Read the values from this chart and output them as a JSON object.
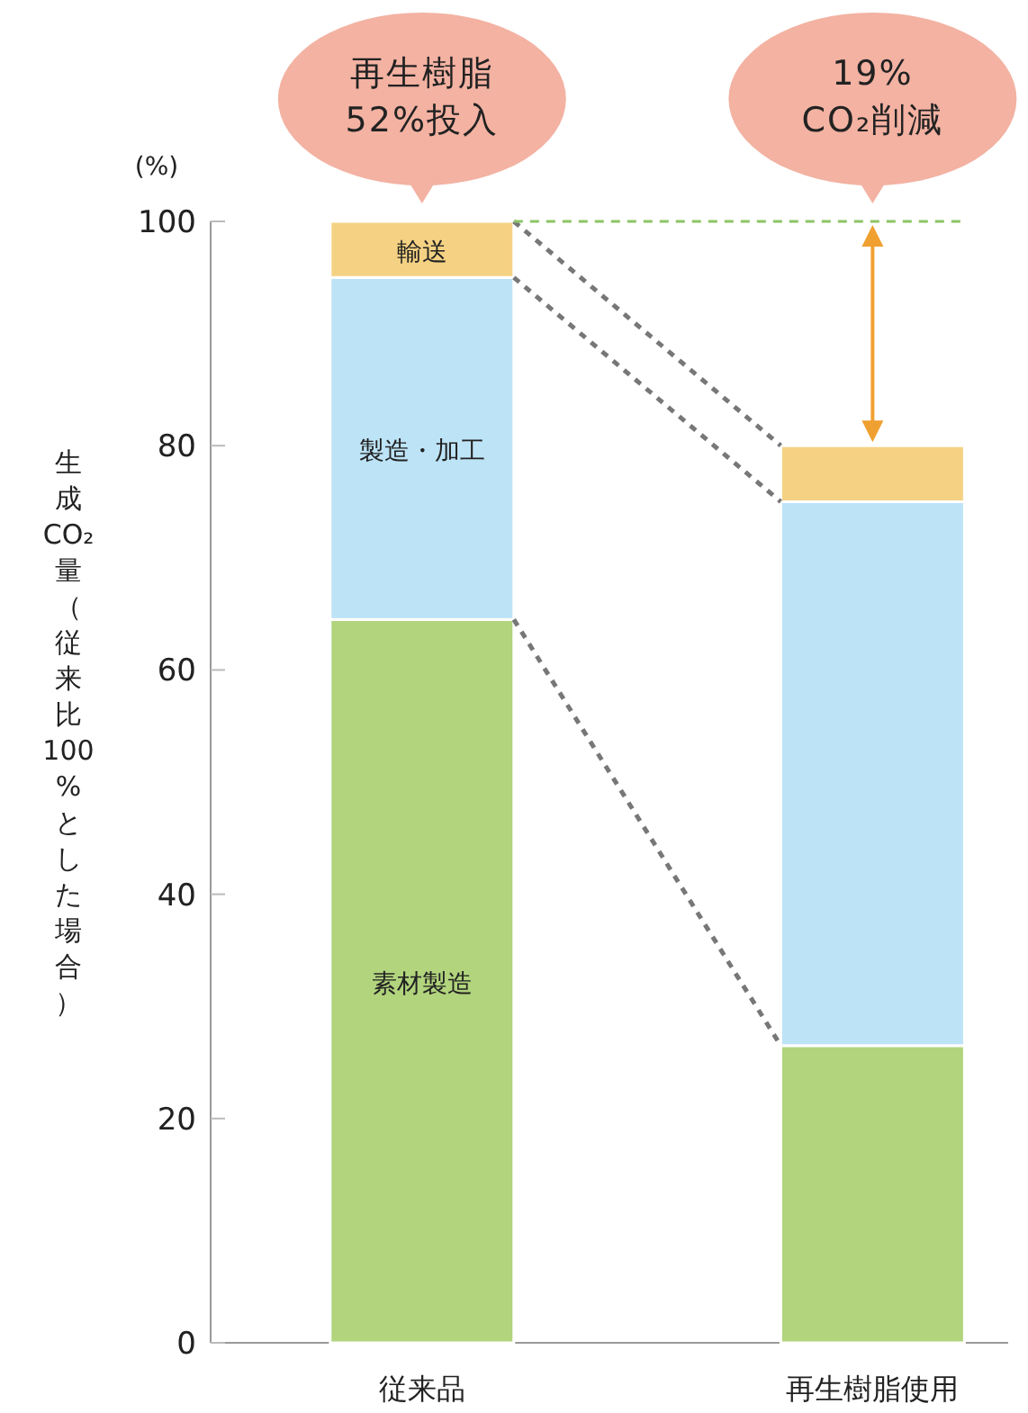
{
  "chart_data": {
    "type": "bar",
    "stacked": true,
    "ylabel": "生成CO₂量（従来比100%とした場合）",
    "categories": [
      "従来品",
      "再生樹脂使用"
    ],
    "series": [
      {
        "name": "素材製造",
        "color": "#b1d47d",
        "values": [
          64.5,
          26.5
        ]
      },
      {
        "name": "製造・加工",
        "color": "#bde3f6",
        "values": [
          30.5,
          48.5
        ]
      },
      {
        "name": "輸送",
        "color": "#f5d283",
        "values": [
          5,
          5
        ]
      }
    ],
    "ylim": [
      0,
      100
    ],
    "yticks": [
      0,
      20,
      40,
      60,
      80,
      100
    ],
    "ref_lines": [
      {
        "axis": "y",
        "value": 100,
        "color": "#8cc464",
        "line_style": "dashed"
      }
    ],
    "annotations": [
      {
        "text": "再生樹脂\n52%投入",
        "x": "従来品",
        "y": 100
      },
      {
        "text": "19%\nCO₂削減",
        "x": "再生樹脂使用",
        "y": 100
      },
      "(%)"
    ],
    "grid": false
  }
}
